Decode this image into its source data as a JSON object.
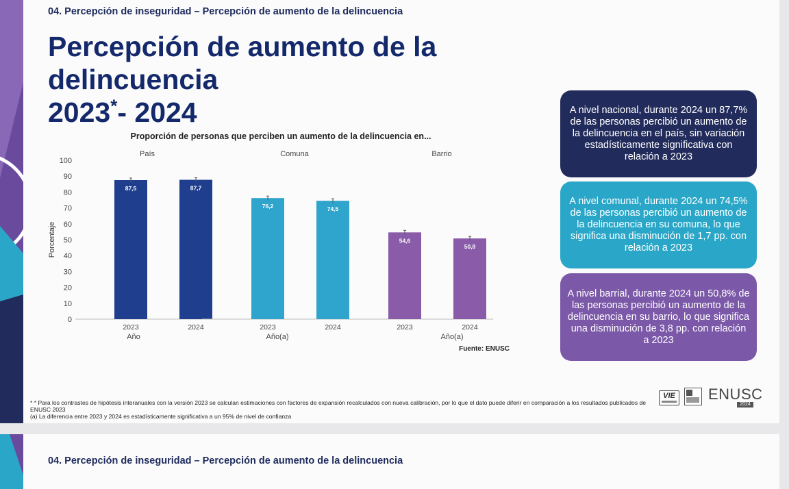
{
  "header": {
    "breadcrumb": "04. Percepción de inseguridad – Percepción de aumento de la delincuencia",
    "title_line1": "Percepción de aumento de la delincuencia",
    "title_year1": "2023",
    "title_asterisk": "*",
    "title_rest": "- 2024"
  },
  "chart_data": {
    "type": "bar",
    "title": "Proporción de personas que perciben un aumento de la delincuencia en...",
    "ylabel": "Porcentaje",
    "ylim": [
      0,
      100
    ],
    "yticks": [
      "0",
      "10",
      "20",
      "30",
      "40",
      "50",
      "60",
      "70",
      "80",
      "90",
      "100"
    ],
    "groups": [
      {
        "name": "País",
        "xlabel": "Año",
        "color": "#1f3f8e",
        "bars": [
          {
            "year": "2023",
            "value": 87.5,
            "label": "87,5"
          },
          {
            "year": "2024",
            "value": 87.7,
            "label": "87,7"
          }
        ]
      },
      {
        "name": "Comuna",
        "xlabel": "Año(a)",
        "color": "#2fa4cc",
        "bars": [
          {
            "year": "2023",
            "value": 76.2,
            "label": "76,2"
          },
          {
            "year": "2024",
            "value": 74.5,
            "label": "74,5"
          }
        ]
      },
      {
        "name": "Barrio",
        "xlabel": "Año(a)",
        "color": "#8a5ba8",
        "bars": [
          {
            "year": "2023",
            "value": 54.6,
            "label": "54,6"
          },
          {
            "year": "2024",
            "value": 50.8,
            "label": "50,8"
          }
        ]
      }
    ],
    "source": "Fuente: ENUSC"
  },
  "insights": [
    {
      "text": "A nivel nacional, durante 2024 un 87,7% de las personas percibió un aumento de la delincuencia en el país, sin variación estadísticamente significativa con relación a 2023"
    },
    {
      "text": "A nivel comunal, durante 2024 un 74,5% de las personas percibió un aumento de la delincuencia en su comuna, lo que significa una disminución de 1,7 pp. con relación a 2023"
    },
    {
      "text": "A nivel barrial, durante 2024 un 50,8% de las personas percibió un aumento de la delincuencia en su barrio, lo que significa una disminución de 3,8 pp. con relación a 2023"
    }
  ],
  "footnotes": {
    "line1": "* * Para los contrastes de hipótesis interanuales con la versión 2023 se calculan estimaciones con factores de expansión recalculados con nueva calibración, por lo que el dato puede diferir en comparación a los resultados publicados de ENUSC 2023",
    "line2": "(a) La diferencia entre 2023 y 2024 es estadísticamente significativa a un 95% de nivel de confianza"
  },
  "logos": {
    "vie": "VIE",
    "enusc": "ENUSC",
    "year": "2024"
  },
  "next_slide": {
    "breadcrumb": "04. Percepción de inseguridad – Percepción de aumento de la delincuencia"
  },
  "colors": {
    "navy": "#222c5c",
    "teal": "#2aa7c8",
    "purple": "#7b58a8",
    "title": "#14296b"
  }
}
